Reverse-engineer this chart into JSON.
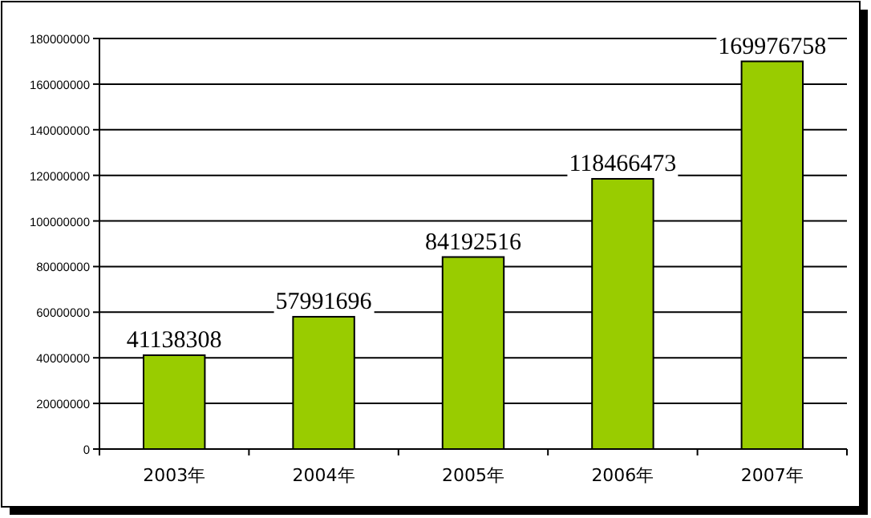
{
  "chart_data": {
    "type": "bar",
    "categories": [
      "2003年",
      "2004年",
      "2005年",
      "2006年",
      "2007年"
    ],
    "values": [
      41138308,
      57991696,
      84192516,
      118466473,
      169976758
    ],
    "color": "#99cc00",
    "ylim": [
      0,
      180000000
    ],
    "yticks": [
      0,
      20000000,
      40000000,
      60000000,
      80000000,
      100000000,
      120000000,
      140000000,
      160000000,
      180000000
    ],
    "grid": "y",
    "data_labels": true
  }
}
